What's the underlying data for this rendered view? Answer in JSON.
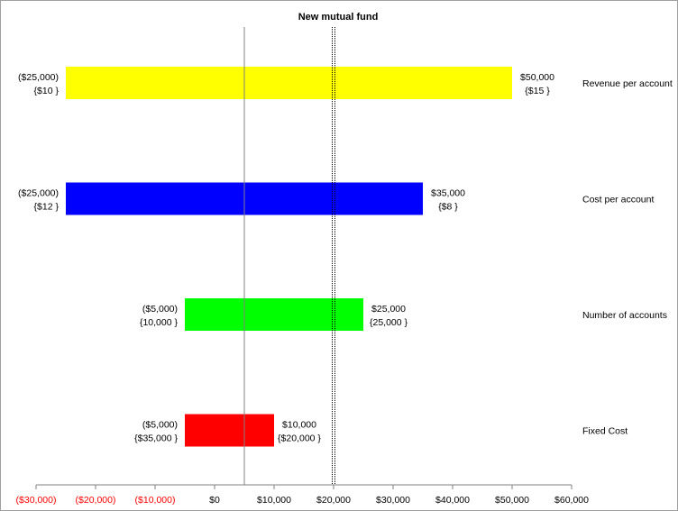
{
  "chart_data": {
    "type": "bar",
    "subtype": "tornado",
    "title": "New mutual fund",
    "xlabel": "",
    "ylabel": "",
    "xlim": [
      -30000,
      60000
    ],
    "x_ticks": [
      -30000,
      -20000,
      -10000,
      0,
      10000,
      20000,
      30000,
      40000,
      50000,
      60000
    ],
    "x_tick_labels": [
      "($30,000)",
      "($20,000)",
      "($10,000)",
      "$0",
      "$10,000",
      "$20,000",
      "$30,000",
      "$40,000",
      "$50,000",
      "$60,000"
    ],
    "negative_tick_color": "#ff0000",
    "positive_tick_color": "#000000",
    "base_value": 5000,
    "reference_value": 20000,
    "grid": false,
    "legend": "none",
    "series": [
      {
        "name": "Revenue per account",
        "low": -25000,
        "high": 50000,
        "low_label": "($25,000)",
        "low_input": "{$10 }",
        "high_label": "$50,000",
        "high_input": "{$15 }",
        "color": "#ffff00"
      },
      {
        "name": "Cost per account",
        "low": -25000,
        "high": 35000,
        "low_label": "($25,000)",
        "low_input": "{$12 }",
        "high_label": "$35,000",
        "high_input": "{$8 }",
        "color": "#0000ff"
      },
      {
        "name": "Number of accounts",
        "low": -5000,
        "high": 25000,
        "low_label": "($5,000)",
        "low_input": "{10,000 }",
        "high_label": "$25,000",
        "high_input": "{25,000 }",
        "color": "#00ff00"
      },
      {
        "name": "Fixed Cost",
        "low": -5000,
        "high": 10000,
        "low_label": "($5,000)",
        "low_input": "{$35,000 }",
        "high_label": "$10,000",
        "high_input": "{$20,000 }",
        "color": "#ff0000"
      }
    ]
  }
}
